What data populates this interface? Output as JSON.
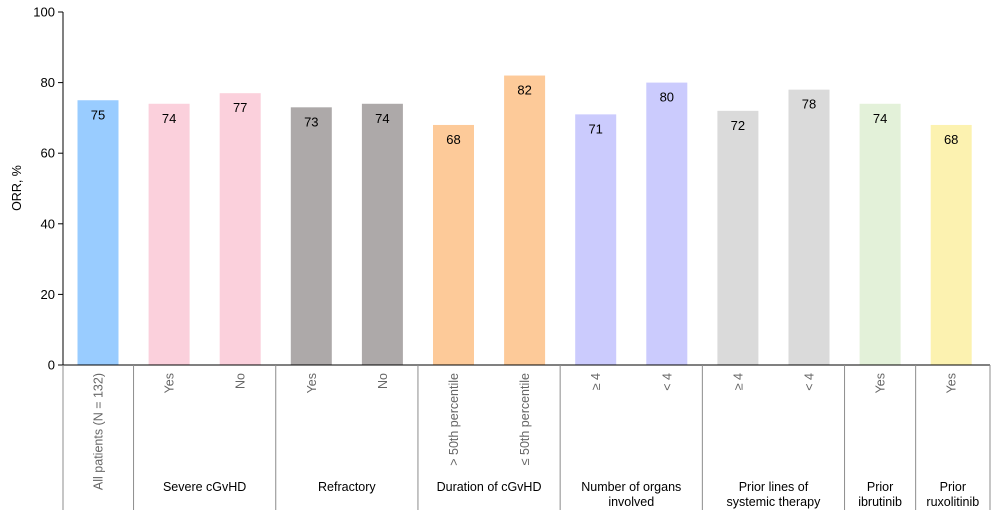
{
  "chart_data": {
    "type": "bar",
    "ylabel": "ORR, %",
    "ylim": [
      0,
      100
    ],
    "yticks": [
      0,
      20,
      40,
      60,
      80,
      100
    ],
    "grid": false,
    "bars": [
      {
        "label": "All patients (N = 132)",
        "value": 75,
        "color": "#99ccff"
      },
      {
        "label": "Yes",
        "value": 74,
        "color": "#fbd0dc"
      },
      {
        "label": "No",
        "value": 77,
        "color": "#fbd0dc"
      },
      {
        "label": "Yes",
        "value": 73,
        "color": "#ada9a9"
      },
      {
        "label": "No",
        "value": 74,
        "color": "#ada9a9"
      },
      {
        "label": "> 50th percentile",
        "value": 68,
        "color": "#fdca99"
      },
      {
        "label": "≤ 50th percentile",
        "value": 82,
        "color": "#fdca99"
      },
      {
        "label": "≥ 4",
        "value": 71,
        "color": "#cbcbfd"
      },
      {
        "label": "< 4",
        "value": 80,
        "color": "#cbcbfd"
      },
      {
        "label": "≥ 4",
        "value": 72,
        "color": "#dadada"
      },
      {
        "label": "< 4",
        "value": 78,
        "color": "#dadada"
      },
      {
        "label": "Yes",
        "value": 74,
        "color": "#e3f1d9"
      },
      {
        "label": "Yes",
        "value": 68,
        "color": "#fcf2b0"
      }
    ],
    "groups": [
      {
        "lines": [
          ""
        ],
        "start": 0,
        "end": 0
      },
      {
        "lines": [
          "Severe cGvHD"
        ],
        "start": 1,
        "end": 2
      },
      {
        "lines": [
          "Refractory"
        ],
        "start": 3,
        "end": 4
      },
      {
        "lines": [
          "Duration of cGvHD"
        ],
        "start": 5,
        "end": 6
      },
      {
        "lines": [
          "Number of organs",
          "involved"
        ],
        "start": 7,
        "end": 8
      },
      {
        "lines": [
          "Prior lines of",
          "systemic therapy"
        ],
        "start": 9,
        "end": 10
      },
      {
        "lines": [
          "Prior",
          "ibrutinib"
        ],
        "start": 11,
        "end": 11
      },
      {
        "lines": [
          "Prior",
          "ruxolitinib"
        ],
        "start": 12,
        "end": 12
      }
    ]
  }
}
